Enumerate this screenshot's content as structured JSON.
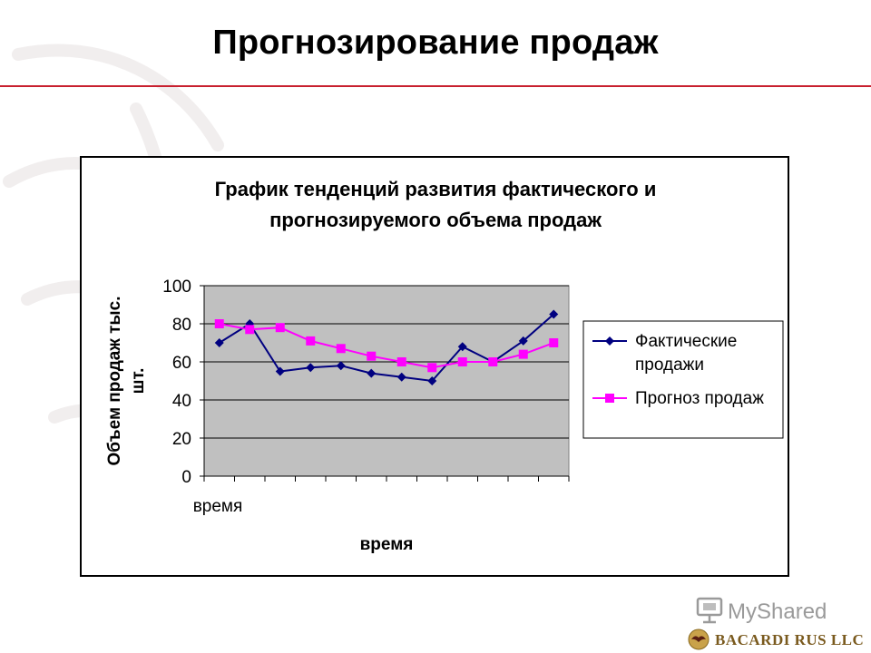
{
  "slide": {
    "title": "Прогнозирование продаж",
    "accent_color": "#c8202f"
  },
  "chart_data": {
    "type": "line",
    "title_line1": "График тенденций развития фактического и",
    "title_line2": "прогнозируемого объема продаж",
    "ylabel_line1": "Объем продаж тыс.",
    "ylabel_line2": "шт.",
    "xlabel": "время",
    "x_tick_label": "время",
    "ylim": [
      0,
      100
    ],
    "y_ticks": [
      0,
      20,
      40,
      60,
      80,
      100
    ],
    "grid": true,
    "plot_background": "#c0c0c0",
    "legend_position": "right",
    "x": [
      1,
      2,
      3,
      4,
      5,
      6,
      7,
      8,
      9,
      10,
      11,
      12
    ],
    "series": [
      {
        "name_line1": "Фактические",
        "name_line2": "продажи",
        "color": "#000080",
        "marker": "diamond",
        "values": [
          70,
          80,
          55,
          57,
          58,
          54,
          52,
          50,
          68,
          60,
          71,
          85
        ]
      },
      {
        "name_line1": "Прогноз продаж",
        "name_line2": "",
        "color": "#ff00ff",
        "marker": "square",
        "values": [
          80,
          77,
          78,
          71,
          67,
          63,
          60,
          57,
          60,
          60,
          64,
          70
        ]
      }
    ]
  },
  "branding": {
    "myshared": "MyShared",
    "company": "BACARDI RUS LLC"
  }
}
